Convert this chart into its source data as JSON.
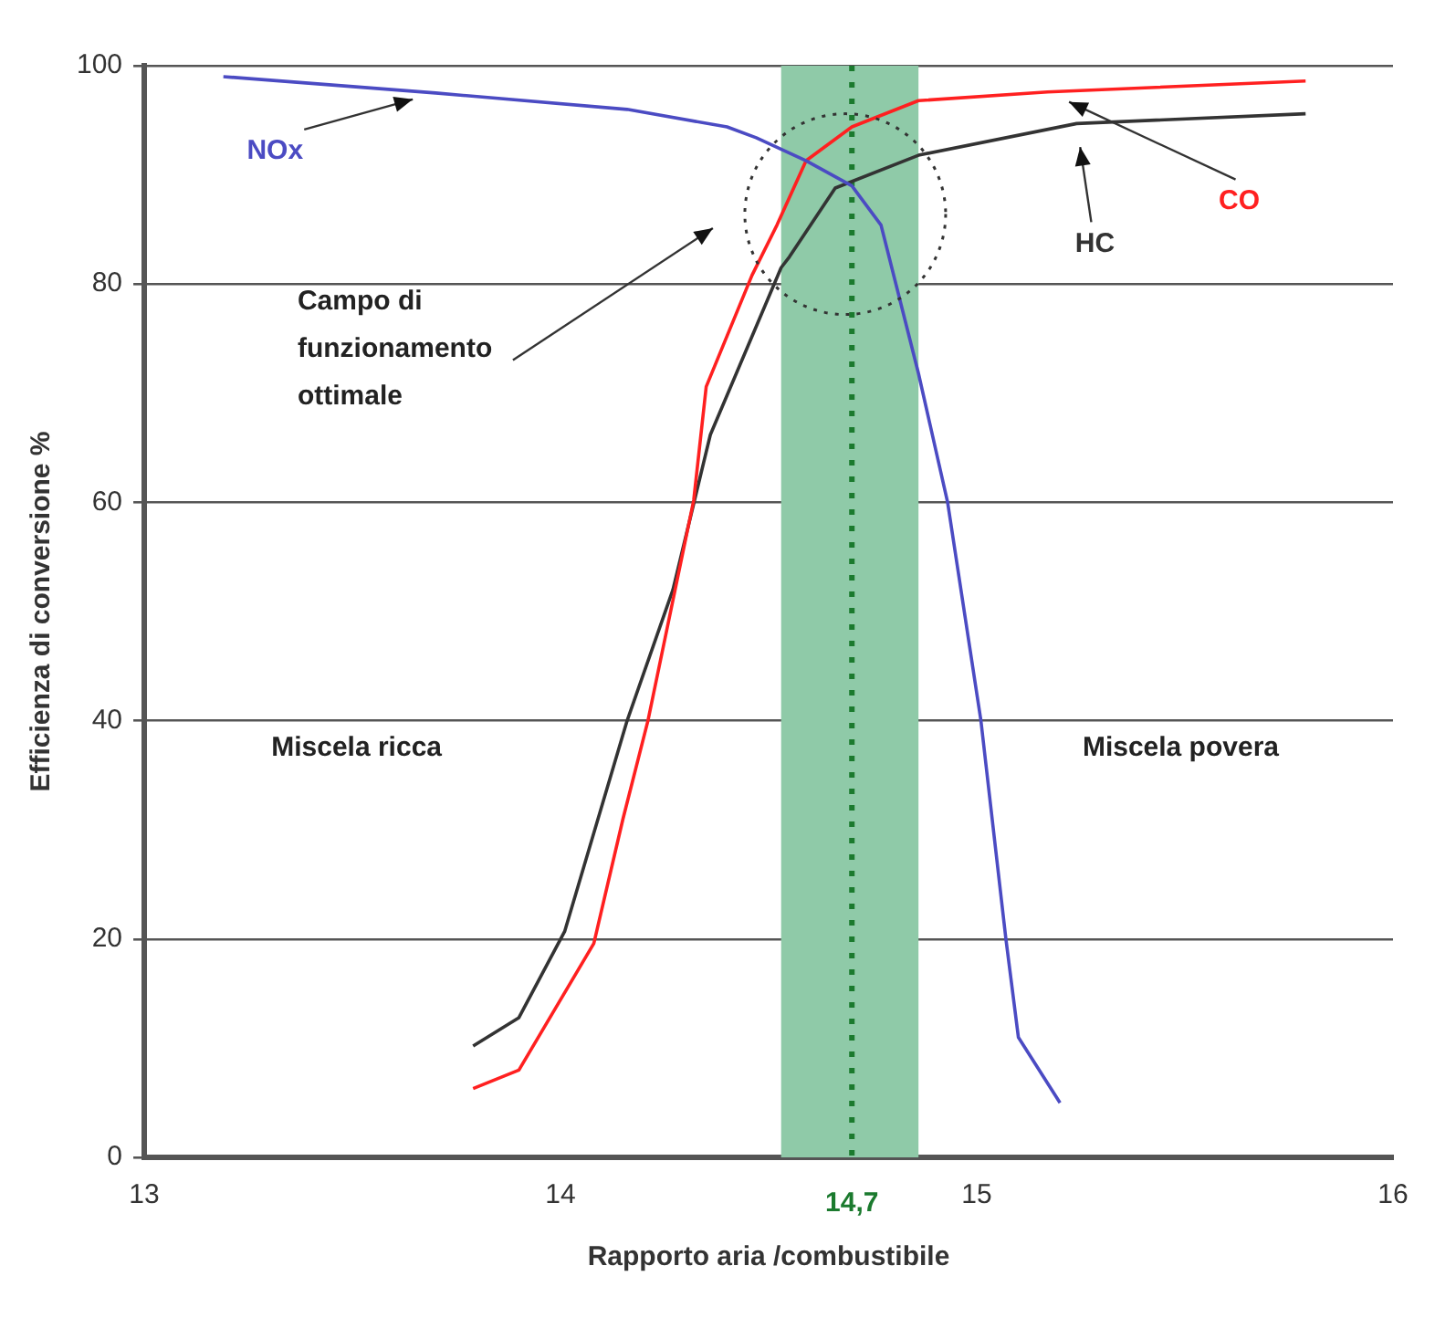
{
  "chart_data": {
    "type": "line",
    "xlabel": "Rapporto aria /combustibile",
    "ylabel": "Efficienza di conversione %",
    "xlim": [
      13,
      16
    ],
    "xticks": [
      13,
      14,
      15,
      16
    ],
    "ylim": [
      0,
      100
    ],
    "yticks": [
      0,
      20,
      40,
      60,
      80,
      100
    ],
    "grid": "y",
    "legend": false,
    "marker": "none",
    "line_style": "solid",
    "series": [
      {
        "name": "NOx",
        "color": "#4b4bc3",
        "x": [
          13.19,
          13.7,
          14.16,
          14.4,
          14.47,
          14.59,
          14.7,
          14.77,
          14.86,
          14.93,
          15.01,
          15.07,
          15.1,
          15.2
        ],
        "values": [
          99,
          97.5,
          96,
          94.4,
          93.4,
          91.3,
          89,
          85.4,
          71.8,
          60,
          40,
          20,
          11,
          5
        ]
      },
      {
        "name": "CO",
        "color": "#ff2020",
        "x": [
          13.79,
          13.9,
          14.08,
          14.15,
          14.21,
          14.32,
          14.35,
          14.46,
          14.52,
          14.59,
          14.7,
          14.86,
          15.17,
          15.79
        ],
        "values": [
          6.3,
          8,
          19.6,
          31,
          40,
          60.2,
          70.6,
          80.8,
          85.4,
          91.3,
          94.4,
          96.8,
          97.6,
          98.6
        ]
      },
      {
        "name": "HC",
        "color": "#333333",
        "x": [
          13.79,
          13.9,
          14.01,
          14.16,
          14.27,
          14.36,
          14.53,
          14.55,
          14.66,
          14.86,
          15.24,
          15.79
        ],
        "values": [
          10.2,
          12.8,
          20.7,
          40,
          52,
          66.2,
          81.5,
          82.5,
          88.8,
          91.8,
          94.7,
          95.6
        ]
      }
    ],
    "bands": [
      {
        "axis": "x",
        "from": 14.53,
        "to": 14.86,
        "color": "#8fcaa8"
      }
    ],
    "ref_lines": [
      {
        "axis": "x",
        "value": 14.7,
        "label": "14,7",
        "color": "#1b7a2e",
        "line_style": "dotted"
      }
    ],
    "annotations": [
      "Campo di funzionamento ottimale",
      "Miscela ricca",
      "Miscela povera"
    ]
  }
}
